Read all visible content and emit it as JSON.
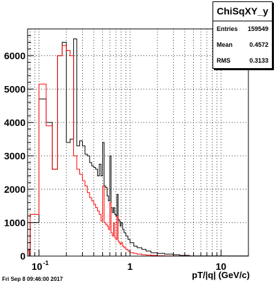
{
  "chart_data": {
    "type": "bar",
    "title": "",
    "xlabel": "pT/|q| (GeV/c)",
    "ylabel": "",
    "xscale": "log",
    "xlim": [
      0.075,
      20
    ],
    "ylim": [
      0,
      6800
    ],
    "grid": true,
    "x_tick_labels": [
      "10^-1",
      "1",
      "10"
    ],
    "y_ticks": [
      0,
      1000,
      2000,
      3000,
      4000,
      5000,
      6000
    ],
    "series": [
      {
        "color": "#000000",
        "edges": [
          0.075,
          0.078,
          0.08,
          0.1,
          0.12,
          0.14,
          0.16,
          0.18,
          0.2,
          0.22,
          0.24,
          0.26,
          0.28,
          0.3,
          0.32,
          0.34,
          0.36,
          0.38,
          0.4,
          0.42,
          0.44,
          0.46,
          0.48,
          0.5,
          0.52,
          0.54,
          0.56,
          0.58,
          0.6,
          0.62,
          0.64,
          0.66,
          0.68,
          0.7,
          0.72,
          0.74,
          0.76,
          0.78,
          0.8,
          0.83,
          0.86,
          0.9,
          0.95,
          1.0,
          1.1,
          1.2,
          1.35,
          1.5,
          1.7,
          2.0,
          2.4,
          3.0,
          3.5,
          4.5,
          20
        ],
        "values": [
          200,
          0,
          1000,
          4700,
          4000,
          2600,
          6000,
          6400,
          3400,
          3500,
          6500,
          3300,
          3450,
          3300,
          3050,
          3000,
          2800,
          2700,
          2650,
          2600,
          2400,
          2750,
          2400,
          3400,
          2100,
          2050,
          1800,
          1650,
          3000,
          1450,
          1300,
          1450,
          1250,
          1200,
          1850,
          1100,
          1050,
          900,
          1000,
          800,
          700,
          600,
          500,
          400,
          300,
          250,
          200,
          150,
          100,
          80,
          60,
          40,
          20,
          5
        ]
      },
      {
        "color": "#ff0000",
        "edges": [
          0.075,
          0.078,
          0.08,
          0.1,
          0.12,
          0.14,
          0.16,
          0.18,
          0.2,
          0.22,
          0.24,
          0.26,
          0.28,
          0.3,
          0.32,
          0.34,
          0.36,
          0.38,
          0.4,
          0.42,
          0.44,
          0.46,
          0.48,
          0.5,
          0.52,
          0.54,
          0.56,
          0.58,
          0.6,
          0.62,
          0.64,
          0.66,
          0.68,
          0.7,
          0.72,
          0.74,
          0.76,
          0.78,
          0.8,
          0.83,
          0.86,
          0.9,
          0.95,
          1.0,
          1.1,
          1.2,
          1.35,
          1.5,
          1.7,
          2.0,
          2.4,
          3.0,
          3.5,
          4.5,
          20
        ],
        "values": [
          150,
          0,
          1250,
          5150,
          3900,
          2600,
          6000,
          6300,
          6150,
          6000,
          3000,
          2600,
          2450,
          2250,
          2100,
          1900,
          1750,
          1650,
          1550,
          1450,
          1350,
          1250,
          1050,
          2100,
          1000,
          950,
          900,
          800,
          1600,
          700,
          600,
          1000,
          550,
          500,
          1200,
          450,
          400,
          350,
          400,
          300,
          250,
          200,
          150,
          100,
          80,
          60,
          40,
          30,
          20,
          10,
          5,
          3,
          2,
          1
        ]
      }
    ]
  },
  "stats": {
    "name": "ChiSqXY_y",
    "entries_label": "Entries",
    "entries_value": "159549",
    "mean_label": "Mean",
    "mean_value": "0.4572",
    "rms_label": "RMS",
    "rms_value": "0.3133"
  },
  "footer": {
    "date": "Fri Sep  8 09:46:00 2017"
  }
}
